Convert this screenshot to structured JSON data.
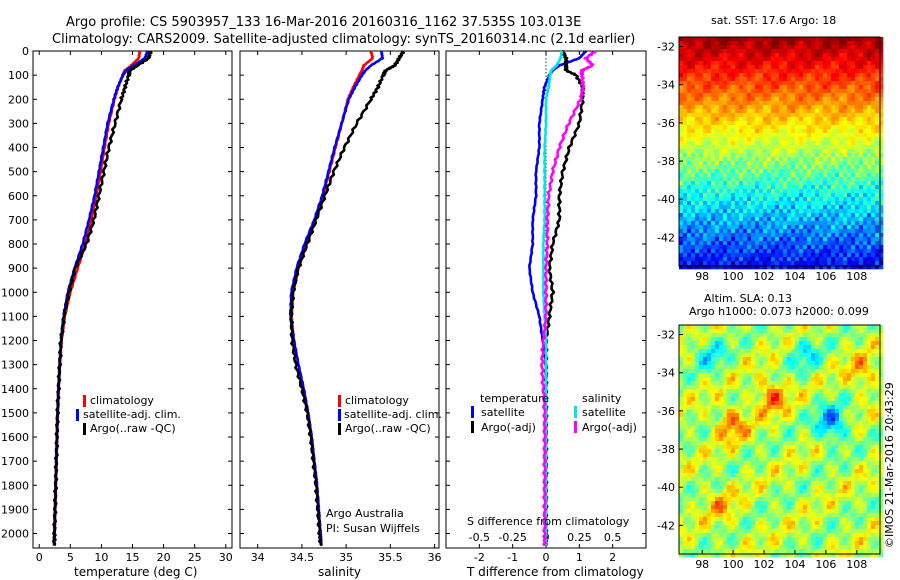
{
  "header": {
    "line1": "Argo profile: CS 5903957_133 16-Mar-2016 20160316_1162 37.535S 103.013E",
    "line2": "Climatology: CARS2009. Satellite-adjusted climatology: synTS_20160314.nc (2.1d earlier)"
  },
  "colors": {
    "climatology": "#ff0000",
    "satellite": "#0000ff",
    "argo": "#000000",
    "salt_sat": "#00e5e5",
    "salt_argo": "#ff00ff"
  },
  "depth_axis": {
    "ticks": [
      0,
      100,
      200,
      300,
      400,
      500,
      600,
      700,
      800,
      900,
      1000,
      1100,
      1200,
      1300,
      1400,
      1500,
      1600,
      1700,
      1800,
      1900,
      2000
    ],
    "lim": [
      0,
      2060
    ]
  },
  "legend": {
    "climatology": "climatology",
    "satellite_adj": "satellite-adj. clim.",
    "argo_raw": "Argo(..raw -QC)"
  },
  "diff_legend": {
    "temp_header": "temperature",
    "salt_header": "salinity",
    "temp_sat": "satellite",
    "temp_argo": "Argo(-adj)",
    "salt_sat": "satellite",
    "salt_argo": "Argo(-adj)"
  },
  "credits": {
    "org": "Argo Australia",
    "pi": "PI: Susan Wijffels"
  },
  "map_sst": {
    "title": "sat. SST: 17.6  Argo: 18",
    "lat_ticks": [
      "-32",
      "-34",
      "-36",
      "-38",
      "-40",
      "-42"
    ],
    "lon_ticks": [
      "98",
      "100",
      "102",
      "104",
      "106",
      "108"
    ]
  },
  "map_sla": {
    "title1": "Altim. SLA: 0.13",
    "title2": "Argo h1000: 0.073 h2000: 0.099",
    "lat_ticks": [
      "-32",
      "-34",
      "-36",
      "-38",
      "-40",
      "-42"
    ],
    "lon_ticks": [
      "98",
      "100",
      "102",
      "104",
      "106",
      "108"
    ]
  },
  "imos_stamp": "©IMOS 21-Mar-2016 20:43:29",
  "chart_data": [
    {
      "type": "line",
      "xlabel": "temperature (deg C)",
      "xlim": [
        -1,
        31
      ],
      "xticks": [
        "0",
        "5",
        "10",
        "15",
        "20",
        "25",
        "30"
      ],
      "ylim": [
        0,
        2060
      ],
      "series": [
        {
          "name": "climatology",
          "depth": [
            0,
            30,
            60,
            80,
            100,
            150,
            200,
            300,
            400,
            500,
            600,
            700,
            800,
            900,
            1000,
            1100,
            1200,
            1300,
            1400,
            1500,
            1600,
            1700,
            1800,
            1900,
            2000,
            2050
          ],
          "values": [
            16.2,
            16.0,
            14.8,
            13.8,
            13.4,
            12.7,
            12.1,
            11.2,
            10.5,
            9.9,
            9.2,
            8.4,
            7.4,
            6.2,
            5.0,
            4.1,
            3.6,
            3.3,
            3.1,
            2.95,
            2.85,
            2.75,
            2.65,
            2.55,
            2.45,
            2.4
          ]
        },
        {
          "name": "satellite-adj. clim.",
          "depth": [
            0,
            30,
            60,
            80,
            100,
            150,
            200,
            300,
            400,
            500,
            600,
            700,
            800,
            900,
            1000,
            1100,
            1200,
            1300,
            1400,
            1500,
            1600,
            1700,
            1800,
            1900,
            2000,
            2050
          ],
          "values": [
            17.4,
            17.0,
            15.2,
            14.0,
            13.5,
            12.6,
            12.0,
            11.0,
            10.3,
            9.6,
            8.9,
            8.0,
            7.0,
            5.7,
            4.6,
            3.9,
            3.5,
            3.3,
            3.1,
            2.95,
            2.85,
            2.75,
            2.65,
            2.55,
            2.45,
            2.4
          ]
        },
        {
          "name": "Argo(..raw -QC)",
          "depth": [
            0,
            30,
            60,
            80,
            100,
            150,
            200,
            300,
            400,
            500,
            600,
            700,
            800,
            900,
            1000,
            1100,
            1200,
            1300,
            1400,
            1500,
            1600,
            1700,
            1800,
            1900,
            2000,
            2050
          ],
          "values": [
            17.9,
            17.6,
            15.8,
            14.6,
            14.4,
            13.8,
            13.2,
            12.2,
            11.2,
            10.4,
            9.6,
            8.8,
            7.6,
            5.8,
            4.8,
            4.0,
            3.5,
            3.3,
            3.1,
            2.95,
            2.85,
            2.75,
            2.65,
            2.55,
            2.45,
            2.4
          ]
        }
      ]
    },
    {
      "type": "line",
      "xlabel": "salinity",
      "xlim": [
        33.8,
        36.05
      ],
      "xticks": [
        "34",
        "34.5",
        "35",
        "35.5",
        "36"
      ],
      "ylim": [
        0,
        2060
      ],
      "series": [
        {
          "name": "climatology",
          "depth": [
            0,
            30,
            60,
            80,
            100,
            150,
            200,
            300,
            400,
            500,
            600,
            700,
            800,
            900,
            1000,
            1100,
            1200,
            1300,
            1400,
            1500,
            1600,
            1700,
            1800,
            1900,
            2000,
            2050
          ],
          "values": [
            35.28,
            35.3,
            35.2,
            35.18,
            35.15,
            35.08,
            35.02,
            34.95,
            34.88,
            34.81,
            34.74,
            34.65,
            34.55,
            34.46,
            34.4,
            34.38,
            34.41,
            34.46,
            34.52,
            34.57,
            34.61,
            34.64,
            34.67,
            34.69,
            34.71,
            34.72
          ]
        },
        {
          "name": "satellite-adj. clim.",
          "depth": [
            0,
            30,
            60,
            80,
            100,
            150,
            200,
            300,
            400,
            500,
            600,
            700,
            800,
            900,
            1000,
            1100,
            1200,
            1300,
            1400,
            1500,
            1600,
            1700,
            1800,
            1900,
            2000,
            2050
          ],
          "values": [
            35.4,
            35.41,
            35.28,
            35.22,
            35.18,
            35.1,
            35.03,
            34.95,
            34.87,
            34.8,
            34.73,
            34.64,
            34.53,
            34.44,
            34.38,
            34.37,
            34.41,
            34.46,
            34.52,
            34.57,
            34.61,
            34.64,
            34.67,
            34.69,
            34.71,
            34.72
          ]
        },
        {
          "name": "Argo(..raw -QC)",
          "depth": [
            0,
            30,
            60,
            80,
            100,
            150,
            200,
            300,
            400,
            500,
            600,
            700,
            800,
            900,
            1000,
            1100,
            1200,
            1300,
            1400,
            1500,
            1600,
            1700,
            1800,
            1900,
            2000,
            2050
          ],
          "values": [
            35.65,
            35.6,
            35.55,
            35.45,
            35.42,
            35.36,
            35.28,
            35.12,
            34.98,
            34.86,
            34.76,
            34.66,
            34.56,
            34.46,
            34.4,
            34.38,
            34.39,
            34.43,
            34.5,
            34.56,
            34.6,
            34.63,
            34.66,
            34.68,
            34.7,
            34.71
          ]
        }
      ]
    },
    {
      "type": "line",
      "xlabel": "T difference from climatology",
      "xlabel_top": "S difference from climatology",
      "xlim": [
        -3.0,
        3.0
      ],
      "xticks": [
        "-2",
        "-1",
        "0",
        "1",
        "2"
      ],
      "xticks_top": [
        "-0.5",
        "-0.25",
        "0",
        "0.25",
        "0.5"
      ],
      "ylim": [
        0,
        2060
      ],
      "series": [
        {
          "name": "temperature satellite",
          "depth": [
            0,
            30,
            60,
            80,
            100,
            150,
            200,
            300,
            400,
            500,
            600,
            700,
            800,
            900,
            1000,
            1100,
            1200,
            1300,
            1400,
            1500,
            1600,
            1700,
            1800,
            1900,
            2000,
            2050
          ],
          "values": [
            1.2,
            1.0,
            0.4,
            0.2,
            0.1,
            -0.05,
            -0.1,
            -0.2,
            -0.2,
            -0.3,
            -0.3,
            -0.4,
            -0.4,
            -0.5,
            -0.4,
            -0.2,
            -0.1,
            0,
            0,
            0,
            0,
            0,
            0,
            0,
            0,
            0
          ]
        },
        {
          "name": "temperature Argo(-adj)",
          "depth": [
            0,
            30,
            60,
            80,
            100,
            150,
            200,
            300,
            400,
            500,
            600,
            700,
            800,
            900,
            1000,
            1100,
            1200,
            1300,
            1400,
            1500,
            1600,
            1700,
            1800,
            1900,
            2000,
            2050
          ],
          "values": [
            0.5,
            0.6,
            0.6,
            0.6,
            0.9,
            1.1,
            1.1,
            1.0,
            0.7,
            0.5,
            0.4,
            0.4,
            0.2,
            0.1,
            0.2,
            0.1,
            0.0,
            0,
            0,
            0,
            0,
            0,
            0,
            0,
            0,
            0
          ]
        },
        {
          "name": "salinity satellite",
          "depth": [
            0,
            30,
            60,
            80,
            100,
            150,
            200,
            300,
            400,
            500,
            600,
            700,
            800,
            900,
            1000,
            1100,
            1200,
            1300,
            1400,
            1500,
            1600,
            1700,
            1800,
            1900,
            2000,
            2050
          ],
          "values": [
            0.12,
            0.11,
            0.08,
            0.04,
            0.03,
            0.02,
            0.0,
            0.0,
            -0.01,
            -0.01,
            -0.01,
            -0.01,
            -0.02,
            -0.02,
            -0.02,
            -0.01,
            0.0,
            0,
            0,
            0,
            0,
            0,
            0,
            0,
            0,
            0
          ]
        },
        {
          "name": "salinity Argo(-adj)",
          "depth": [
            0,
            30,
            60,
            80,
            100,
            150,
            200,
            300,
            400,
            500,
            600,
            700,
            800,
            900,
            1000,
            1100,
            1200,
            1300,
            1400,
            1500,
            1600,
            1700,
            1800,
            1900,
            2000,
            2050
          ],
          "values": [
            0.37,
            0.3,
            0.35,
            0.27,
            0.27,
            0.28,
            0.26,
            0.17,
            0.1,
            0.05,
            0.02,
            0.01,
            0.01,
            0.0,
            0.0,
            0.0,
            -0.02,
            -0.03,
            -0.02,
            -0.01,
            -0.01,
            -0.01,
            -0.01,
            -0.01,
            -0.01,
            -0.01
          ]
        }
      ]
    },
    {
      "type": "heatmap",
      "title": "sat. SST: 17.6  Argo: 18",
      "xlim": [
        96.5,
        109.5
      ],
      "ylim": [
        -43.5,
        -31.5
      ],
      "colorscale": "jet, warm north to cool south"
    },
    {
      "type": "heatmap",
      "title": "Altim. SLA: 0.13",
      "xlim": [
        96.5,
        109.5
      ],
      "ylim": [
        -43.5,
        -31.5
      ],
      "colorscale": "jet, mostly green with mottled highs and lows"
    }
  ]
}
